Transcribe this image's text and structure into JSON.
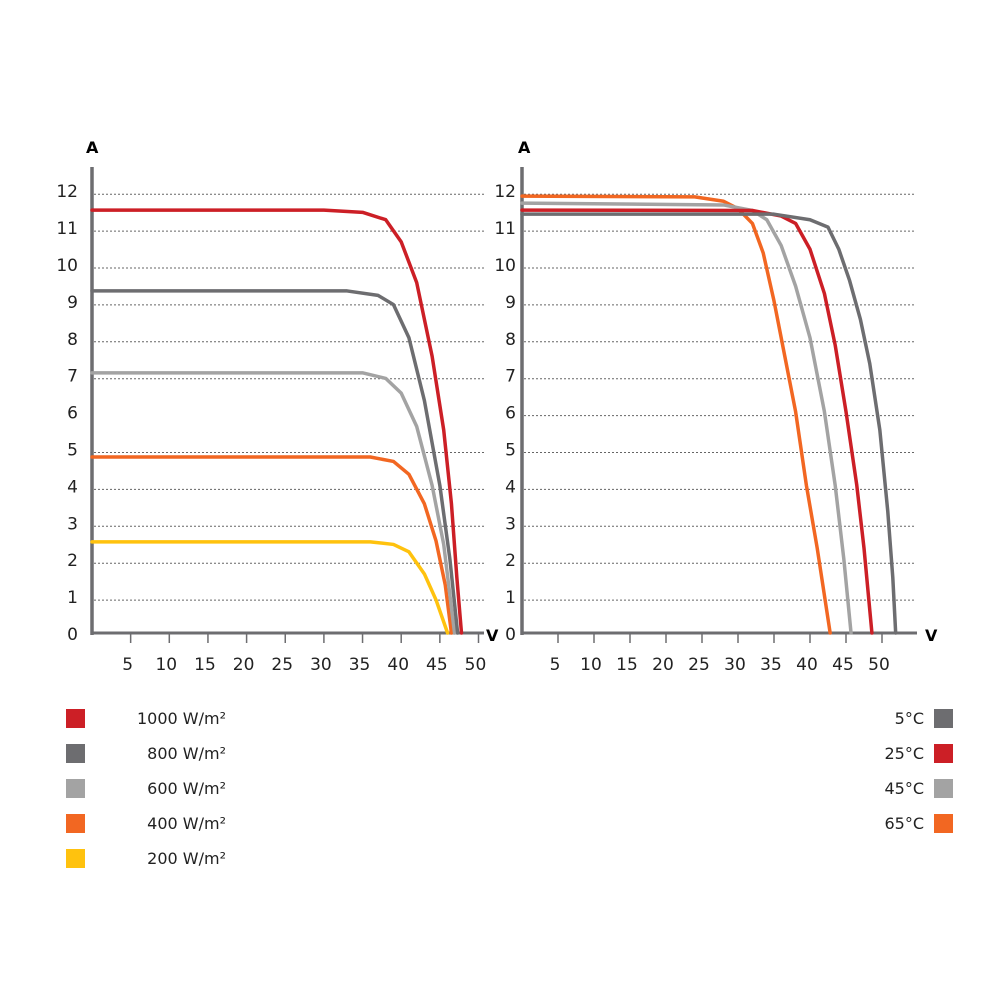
{
  "chart_data": [
    {
      "type": "line",
      "ylabel": "A",
      "xlabel": "V",
      "xlim": [
        0,
        50
      ],
      "ylim": [
        0,
        12
      ],
      "x_ticks": [
        5,
        10,
        15,
        20,
        25,
        30,
        35,
        40,
        45,
        50
      ],
      "y_ticks": [
        0,
        1,
        2,
        3,
        4,
        5,
        6,
        7,
        8,
        9,
        10,
        11,
        12
      ],
      "grid": "horizontal dotted",
      "legend_position": "bottom-left",
      "series": [
        {
          "name": "1000 W/m²",
          "color": "#cc1f26",
          "points": [
            [
              0,
              11.46
            ],
            [
              30,
              11.46
            ],
            [
              35,
              11.4
            ],
            [
              38,
              11.2
            ],
            [
              40,
              10.6
            ],
            [
              42,
              9.5
            ],
            [
              44,
              7.5
            ],
            [
              45.5,
              5.5
            ],
            [
              46.5,
              3.5
            ],
            [
              47.2,
              1.5
            ],
            [
              47.8,
              0
            ]
          ]
        },
        {
          "name": "800 W/m²",
          "color": "#6d6d70",
          "points": [
            [
              0,
              9.27
            ],
            [
              33,
              9.27
            ],
            [
              37,
              9.15
            ],
            [
              39,
              8.9
            ],
            [
              41,
              8.0
            ],
            [
              43,
              6.3
            ],
            [
              45,
              4.0
            ],
            [
              46.3,
              2.0
            ],
            [
              47.3,
              0
            ]
          ]
        },
        {
          "name": "600 W/m²",
          "color": "#a3a3a3",
          "points": [
            [
              0,
              7.05
            ],
            [
              35,
              7.05
            ],
            [
              38,
              6.9
            ],
            [
              40,
              6.5
            ],
            [
              42,
              5.6
            ],
            [
              44,
              4.0
            ],
            [
              45.5,
              2.4
            ],
            [
              46.9,
              0
            ]
          ]
        },
        {
          "name": "400 W/m²",
          "color": "#f26722",
          "points": [
            [
              0,
              4.77
            ],
            [
              36,
              4.77
            ],
            [
              39,
              4.65
            ],
            [
              41,
              4.3
            ],
            [
              43,
              3.5
            ],
            [
              44.5,
              2.5
            ],
            [
              45.7,
              1.3
            ],
            [
              46.5,
              0
            ]
          ]
        },
        {
          "name": "200 W/m²",
          "color": "#ffc20e",
          "points": [
            [
              0,
              2.47
            ],
            [
              36,
              2.47
            ],
            [
              39,
              2.4
            ],
            [
              41,
              2.2
            ],
            [
              43,
              1.6
            ],
            [
              44.5,
              0.9
            ],
            [
              45.5,
              0.3
            ],
            [
              46,
              0
            ]
          ]
        }
      ]
    },
    {
      "type": "line",
      "ylabel": "A",
      "xlabel": "V",
      "xlim": [
        0,
        50
      ],
      "ylim": [
        0,
        12
      ],
      "x_ticks": [
        5,
        10,
        15,
        20,
        25,
        30,
        35,
        40,
        45,
        50
      ],
      "y_ticks": [
        0,
        1,
        2,
        3,
        4,
        5,
        6,
        7,
        8,
        9,
        10,
        11,
        12
      ],
      "grid": "horizontal dotted",
      "legend_position": "bottom-right",
      "series": [
        {
          "name": "5°C",
          "color": "#6d6d70",
          "points": [
            [
              0,
              11.35
            ],
            [
              35,
              11.35
            ],
            [
              40,
              11.2
            ],
            [
              42.5,
              11.0
            ],
            [
              44,
              10.4
            ],
            [
              45.5,
              9.55
            ],
            [
              47,
              8.5
            ],
            [
              48.3,
              7.3
            ],
            [
              49.7,
              5.5
            ],
            [
              50.8,
              3.3
            ],
            [
              51.5,
              1.5
            ],
            [
              51.9,
              0
            ]
          ]
        },
        {
          "name": "25°C",
          "color": "#cc1f26",
          "points": [
            [
              0,
              11.46
            ],
            [
              32,
              11.45
            ],
            [
              36,
              11.3
            ],
            [
              38,
              11.1
            ],
            [
              40,
              10.4
            ],
            [
              42,
              9.2
            ],
            [
              43.5,
              7.8
            ],
            [
              45,
              6.0
            ],
            [
              46.5,
              4.0
            ],
            [
              47.5,
              2.3
            ],
            [
              48.6,
              0
            ]
          ]
        },
        {
          "name": "45°C",
          "color": "#a3a3a3",
          "points": [
            [
              0,
              11.65
            ],
            [
              28,
              11.6
            ],
            [
              32,
              11.45
            ],
            [
              34,
              11.2
            ],
            [
              36,
              10.5
            ],
            [
              38,
              9.4
            ],
            [
              40,
              8.0
            ],
            [
              42,
              6.0
            ],
            [
              43.5,
              4.0
            ],
            [
              44.7,
              2.0
            ],
            [
              45.7,
              0
            ]
          ]
        },
        {
          "name": "65°C",
          "color": "#f26722",
          "points": [
            [
              0,
              11.84
            ],
            [
              24,
              11.82
            ],
            [
              28,
              11.7
            ],
            [
              30,
              11.5
            ],
            [
              32,
              11.1
            ],
            [
              33.5,
              10.3
            ],
            [
              35,
              9.0
            ],
            [
              36.5,
              7.5
            ],
            [
              38,
              6.0
            ],
            [
              39.5,
              4.0
            ],
            [
              41,
              2.3
            ],
            [
              42.8,
              0
            ]
          ]
        }
      ]
    }
  ]
}
